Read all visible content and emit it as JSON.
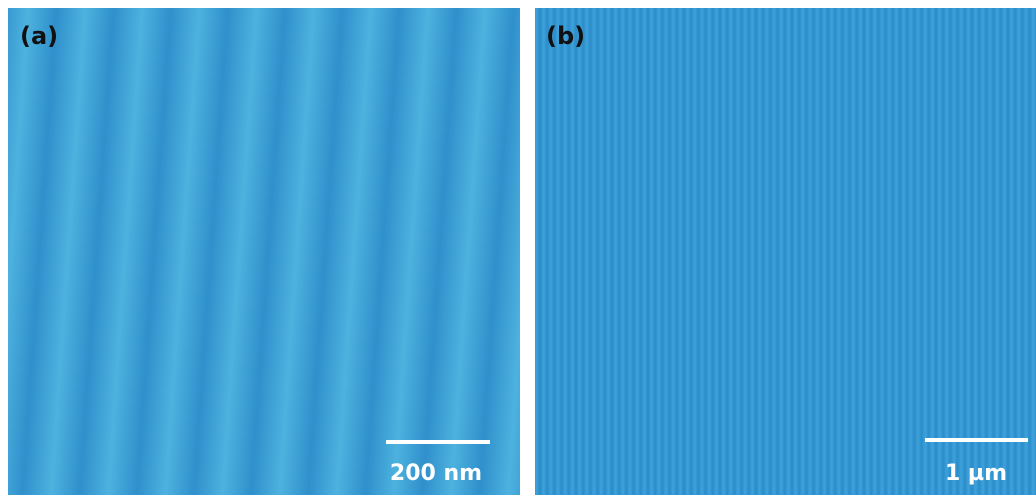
{
  "panels": [
    {
      "label": "(a)",
      "scale_bar": "200 nm"
    },
    {
      "label": "(b)",
      "scale_bar": "1 µm"
    }
  ]
}
